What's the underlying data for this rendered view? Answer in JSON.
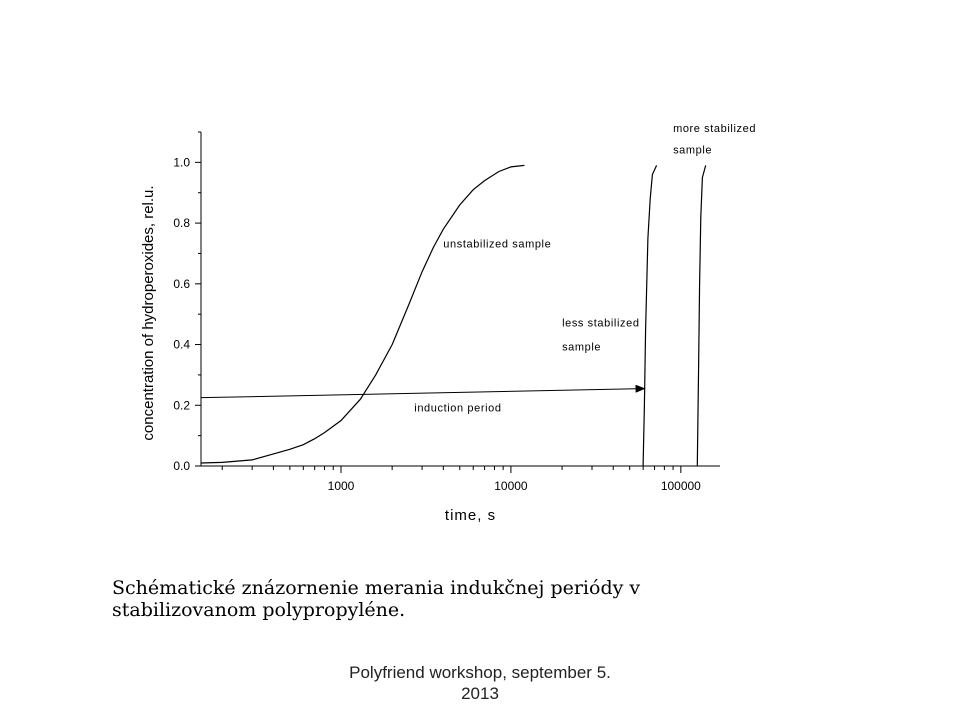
{
  "chart_data": {
    "type": "line",
    "xscale": "log",
    "xlabel": "time, s",
    "ylabel": "concentration of hydroperoxides, rel.u.",
    "xlim": [
      150,
      170000
    ],
    "ylim": [
      0.0,
      1.1
    ],
    "x_ticks": [
      1000,
      10000,
      100000
    ],
    "x_tick_labels": [
      "1000",
      "10000",
      "100000"
    ],
    "y_ticks": [
      0.0,
      0.2,
      0.4,
      0.6,
      0.8,
      1.0
    ],
    "y_tick_labels": [
      "0.0",
      "0.2",
      "0.4",
      "0.6",
      "0.8",
      "1.0"
    ],
    "grid": false,
    "series": [
      {
        "name": "unstabilized sample",
        "points": [
          [
            150,
            0.01
          ],
          [
            200,
            0.012
          ],
          [
            300,
            0.02
          ],
          [
            400,
            0.04
          ],
          [
            500,
            0.055
          ],
          [
            600,
            0.07
          ],
          [
            700,
            0.09
          ],
          [
            800,
            0.11
          ],
          [
            1000,
            0.15
          ],
          [
            1300,
            0.22
          ],
          [
            1600,
            0.3
          ],
          [
            2000,
            0.4
          ],
          [
            2500,
            0.53
          ],
          [
            3000,
            0.64
          ],
          [
            3500,
            0.72
          ],
          [
            4000,
            0.78
          ],
          [
            5000,
            0.86
          ],
          [
            6000,
            0.91
          ],
          [
            7000,
            0.94
          ],
          [
            8500,
            0.97
          ],
          [
            10000,
            0.985
          ],
          [
            12000,
            0.99
          ]
        ]
      },
      {
        "name": "less stabilized sample",
        "points": [
          [
            60000,
            0.0
          ],
          [
            61000,
            0.2
          ],
          [
            62000,
            0.45
          ],
          [
            64000,
            0.75
          ],
          [
            66000,
            0.88
          ],
          [
            68000,
            0.96
          ],
          [
            72000,
            0.99
          ]
        ]
      },
      {
        "name": "more stabilized sample",
        "points": [
          [
            125000,
            0.0
          ],
          [
            127000,
            0.3
          ],
          [
            129000,
            0.6
          ],
          [
            131000,
            0.82
          ],
          [
            134000,
            0.95
          ],
          [
            140000,
            0.99
          ]
        ]
      }
    ],
    "annotations": [
      {
        "text": "unstabilized sample",
        "x": 4000,
        "y": 0.72
      },
      {
        "text": "less stabilized",
        "x": 20000,
        "y": 0.46
      },
      {
        "text": "sample",
        "x": 20000,
        "y": 0.38
      },
      {
        "text": "more stabilized",
        "x": 90000,
        "y": 1.1
      },
      {
        "text": "sample",
        "x": 90000,
        "y": 1.03
      },
      {
        "text": "induction period",
        "x": 2700,
        "y": 0.18
      }
    ],
    "arrow": {
      "label": "induction period",
      "from": [
        150,
        0.225
      ],
      "to": [
        62000,
        0.255
      ]
    }
  },
  "caption": "Schématické znázornenie merania indukčnej periódy v stabilizovanom polypropyléne.",
  "footer": "Polyfriend workshop, september 5. 2013"
}
